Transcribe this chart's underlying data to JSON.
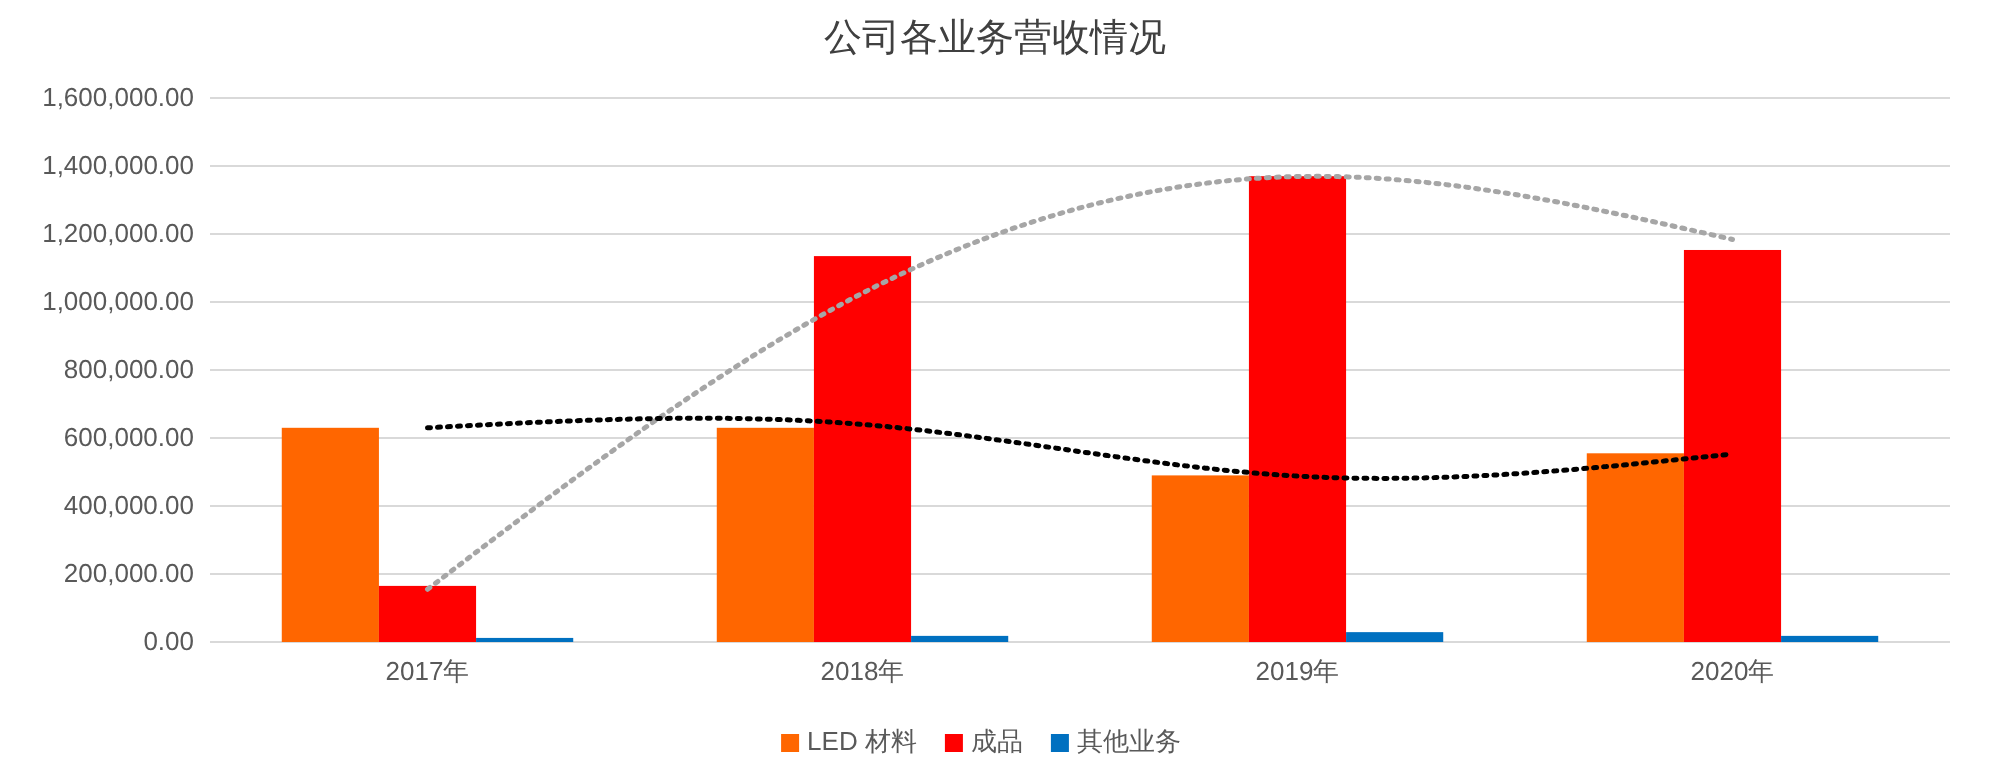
{
  "chart_data": {
    "type": "bar",
    "title": "公司各业务营收情况",
    "categories": [
      "2017年",
      "2018年",
      "2019年",
      "2020年"
    ],
    "series": [
      {
        "name": "LED 材料",
        "color": "#ff6600",
        "values": [
          630000,
          630000,
          490000,
          555000
        ]
      },
      {
        "name": "成品",
        "color": "#ff0000",
        "values": [
          165000,
          1135000,
          1370000,
          1153000
        ]
      },
      {
        "name": "其他业务",
        "color": "#0070c0",
        "values": [
          12000,
          18000,
          29000,
          18000
        ]
      },
      {
        "type": "line",
        "color": "#a6a6a6",
        "line_style": "dotted",
        "values": [
          155000,
          1026000,
          1369000,
          1184000
        ]
      },
      {
        "type": "line",
        "color": "#000000",
        "line_style": "dotted",
        "values": [
          630000,
          640000,
          488000,
          553000
        ]
      }
    ],
    "ylim": [
      0,
      1600000
    ],
    "yticks": [
      {
        "value": 0,
        "label": "0.00"
      },
      {
        "value": 200000,
        "label": "200,000.00"
      },
      {
        "value": 400000,
        "label": "400,000.00"
      },
      {
        "value": 600000,
        "label": "600,000.00"
      },
      {
        "value": 800000,
        "label": "800,000.00"
      },
      {
        "value": 1000000,
        "label": "1,000,000.00"
      },
      {
        "value": 1200000,
        "label": "1,200,000.00"
      },
      {
        "value": 1400000,
        "label": "1,400,000.00"
      },
      {
        "value": 1600000,
        "label": "1,600,000.00"
      }
    ],
    "grid": "y",
    "legend": "bottom"
  }
}
